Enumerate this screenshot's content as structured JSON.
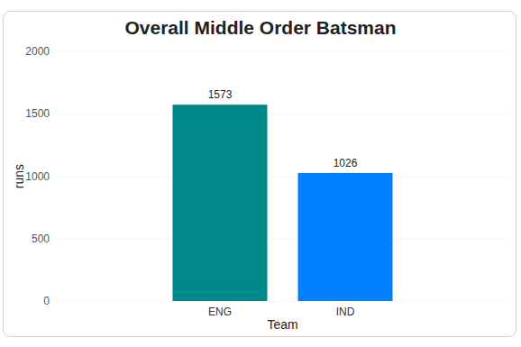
{
  "chart_data": {
    "type": "bar",
    "title": "Overall Middle Order Batsman",
    "x_label": "Team",
    "y_label": "runs",
    "categories": [
      "ENG",
      "IND"
    ],
    "values": [
      1573,
      1026
    ],
    "colors": [
      "#00898a",
      "#0080ff"
    ],
    "ylim": [
      0,
      2000
    ],
    "yticks": [
      0,
      500,
      1000,
      1500,
      2000
    ],
    "grid": true,
    "data_labels": true
  }
}
